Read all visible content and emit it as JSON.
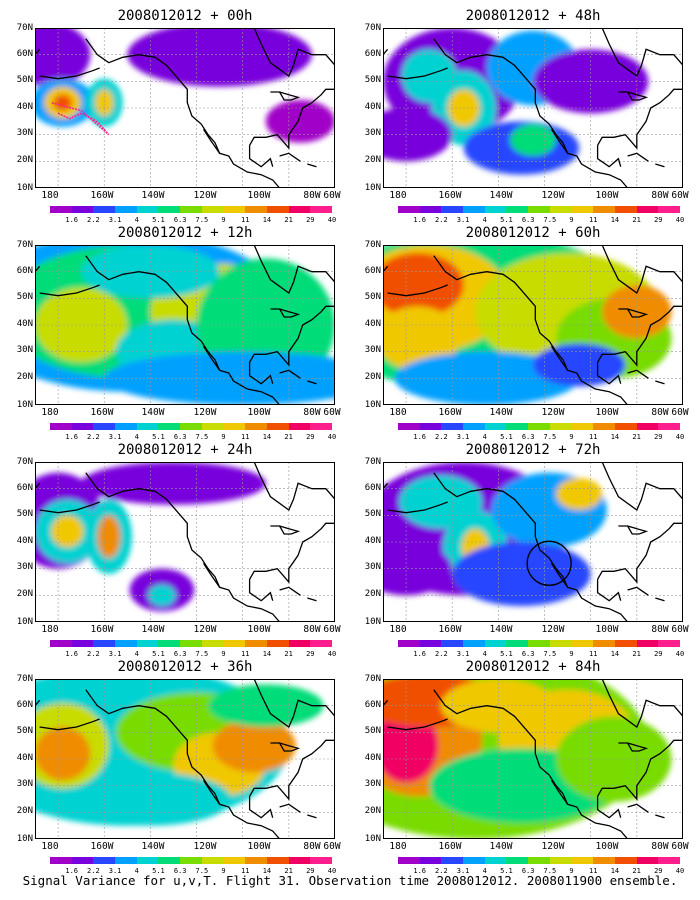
{
  "panels": [
    {
      "title": "2008012012 + 00h",
      "level": 0,
      "circle": false,
      "track": true
    },
    {
      "title": "2008012012 + 48h",
      "level": 4,
      "circle": false,
      "track": false
    },
    {
      "title": "2008012012 + 12h",
      "level": 1,
      "circle": false,
      "track": false
    },
    {
      "title": "2008012012 + 60h",
      "level": 5,
      "circle": false,
      "track": false
    },
    {
      "title": "2008012012 + 24h",
      "level": 2,
      "circle": false,
      "track": false
    },
    {
      "title": "2008012012 + 72h",
      "level": 6,
      "circle": true,
      "track": false
    },
    {
      "title": "2008012012 + 36h",
      "level": 3,
      "circle": false,
      "track": false
    },
    {
      "title": "2008012012 + 84h",
      "level": 7,
      "circle": false,
      "track": false
    }
  ],
  "lat_labels": [
    "70N",
    "60N",
    "50N",
    "40N",
    "30N",
    "20N",
    "10N"
  ],
  "lon_labels": [
    "180",
    "160W",
    "140W",
    "120W",
    "100W",
    "80W",
    "60W"
  ],
  "colorbar": {
    "colors": [
      "#a000c8",
      "#7800dc",
      "#2846ff",
      "#00a0ff",
      "#00d2d2",
      "#00dc78",
      "#78dc00",
      "#c8dc00",
      "#f0c800",
      "#f08c00",
      "#f05000",
      "#f00064",
      "#ff1e8c"
    ],
    "labels": [
      "1.6",
      "2.2",
      "3.1",
      "4",
      "5.1",
      "6.3",
      "7.5",
      "9",
      "11",
      "14",
      "21",
      "29",
      "40"
    ]
  },
  "footer": "Signal Variance for u,v,T. Flight 31. Observation time 2008012012. 2008011900 ensemble."
}
